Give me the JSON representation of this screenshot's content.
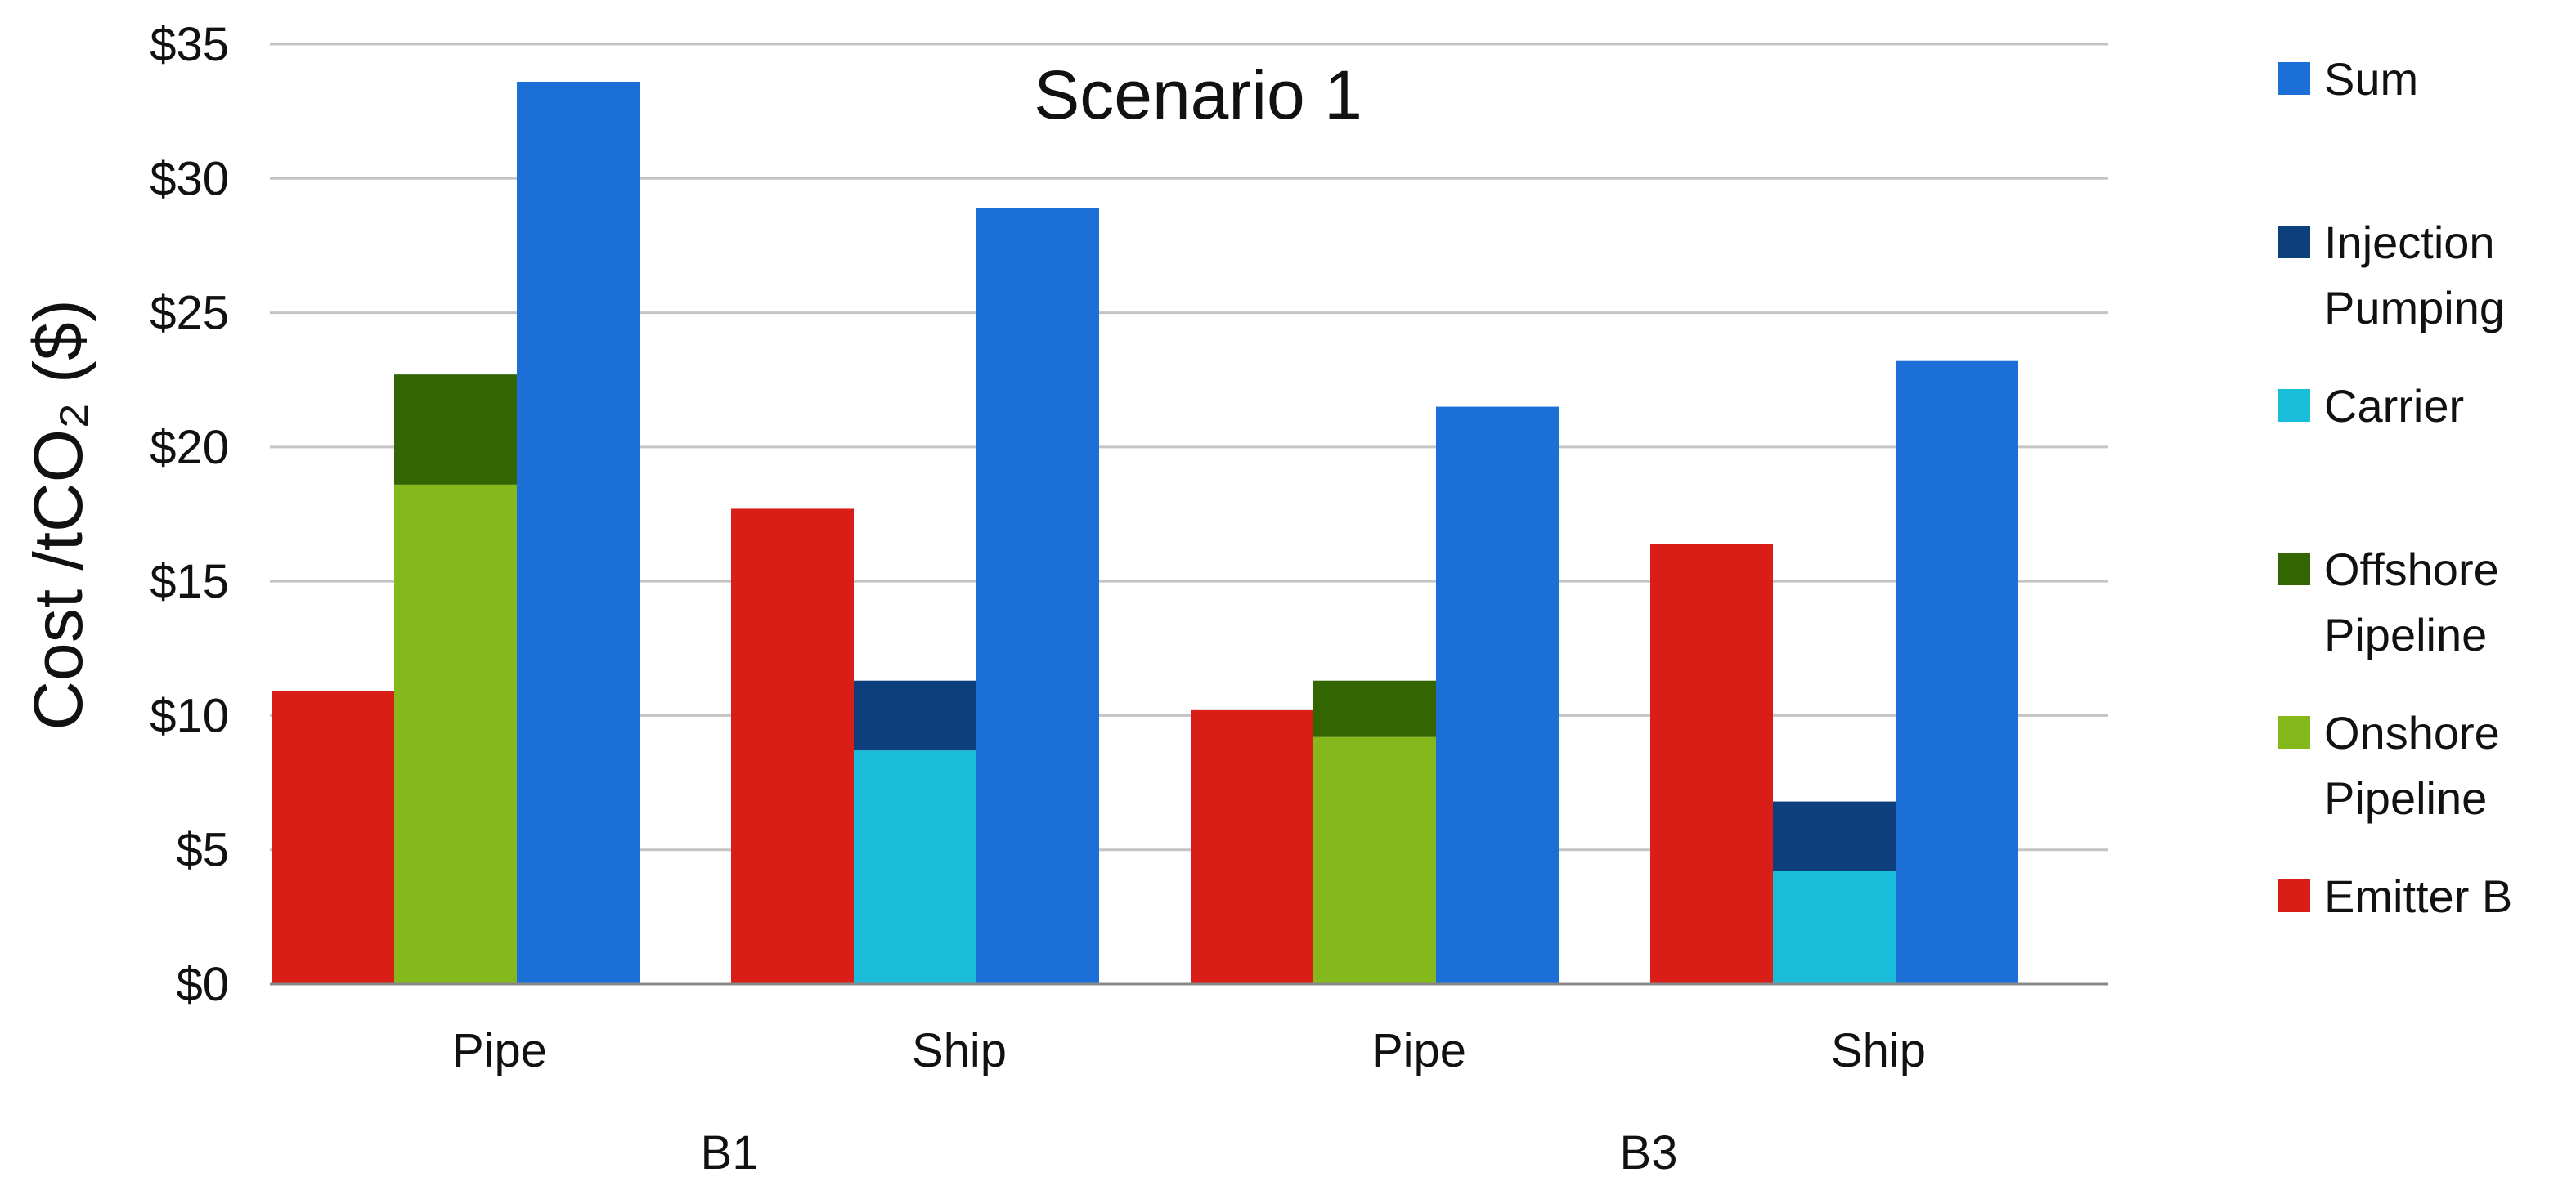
{
  "chart_data": {
    "type": "bar",
    "title": "Scenario 1",
    "ylabel": "Cost /tCO₂ ($)",
    "ylim": [
      0,
      35
    ],
    "ytick_values": [
      0,
      5,
      10,
      15,
      20,
      25,
      30,
      35
    ],
    "yticks": [
      "$0",
      "$5",
      "$10",
      "$15",
      "$20",
      "$25",
      "$30",
      "$35"
    ],
    "grid": true,
    "legend_position": "right",
    "groups": [
      {
        "label": "B1",
        "categories": [
          {
            "label": "Pipe",
            "bars": [
              {
                "stack": [
                  {
                    "series": "Emitter B",
                    "value": 10.9
                  }
                ]
              },
              {
                "stack": [
                  {
                    "series": "Onshore Pipeline",
                    "value": 18.6
                  },
                  {
                    "series": "Offshore Pipeline",
                    "value": 4.1
                  }
                ]
              },
              {
                "stack": [
                  {
                    "series": "Sum",
                    "value": 33.6
                  }
                ]
              }
            ]
          },
          {
            "label": "Ship",
            "bars": [
              {
                "stack": [
                  {
                    "series": "Emitter B",
                    "value": 17.7
                  }
                ]
              },
              {
                "stack": [
                  {
                    "series": "Carrier",
                    "value": 8.7
                  },
                  {
                    "series": "Injection Pumping",
                    "value": 2.6
                  }
                ]
              },
              {
                "stack": [
                  {
                    "series": "Sum",
                    "value": 28.9
                  }
                ]
              }
            ]
          }
        ]
      },
      {
        "label": "B3",
        "categories": [
          {
            "label": "Pipe",
            "bars": [
              {
                "stack": [
                  {
                    "series": "Emitter B",
                    "value": 10.2
                  }
                ]
              },
              {
                "stack": [
                  {
                    "series": "Onshore Pipeline",
                    "value": 9.2
                  },
                  {
                    "series": "Offshore Pipeline",
                    "value": 2.1
                  }
                ]
              },
              {
                "stack": [
                  {
                    "series": "Sum",
                    "value": 21.5
                  }
                ]
              }
            ]
          },
          {
            "label": "Ship",
            "bars": [
              {
                "stack": [
                  {
                    "series": "Emitter B",
                    "value": 16.4
                  }
                ]
              },
              {
                "stack": [
                  {
                    "series": "Carrier",
                    "value": 4.2
                  },
                  {
                    "series": "Injection Pumping",
                    "value": 2.6
                  }
                ]
              },
              {
                "stack": [
                  {
                    "series": "Sum",
                    "value": 23.2
                  }
                ]
              }
            ]
          }
        ]
      }
    ],
    "series": [
      {
        "name": "Sum",
        "color": "#1b6fd6"
      },
      {
        "name": "Injection Pumping",
        "color": "#0e3f7d"
      },
      {
        "name": "Carrier",
        "color": "#19bcd9"
      },
      {
        "name": "Offshore Pipeline",
        "color": "#336600"
      },
      {
        "name": "Onshore Pipeline",
        "color": "#85b81b"
      },
      {
        "name": "Emitter B",
        "color": "#d91e18"
      }
    ],
    "legend": [
      {
        "series": "Sum",
        "lines": [
          "Sum"
        ]
      },
      {
        "series": "Injection Pumping",
        "lines": [
          "Injection",
          "Pumping"
        ]
      },
      {
        "series": "Carrier",
        "lines": [
          "Carrier"
        ]
      },
      {
        "series": "Offshore Pipeline",
        "lines": [
          "Offshore",
          "Pipeline"
        ]
      },
      {
        "series": "Onshore Pipeline",
        "lines": [
          "Onshore",
          "Pipeline"
        ]
      },
      {
        "series": "Emitter B",
        "lines": [
          "Emitter B"
        ]
      }
    ]
  }
}
